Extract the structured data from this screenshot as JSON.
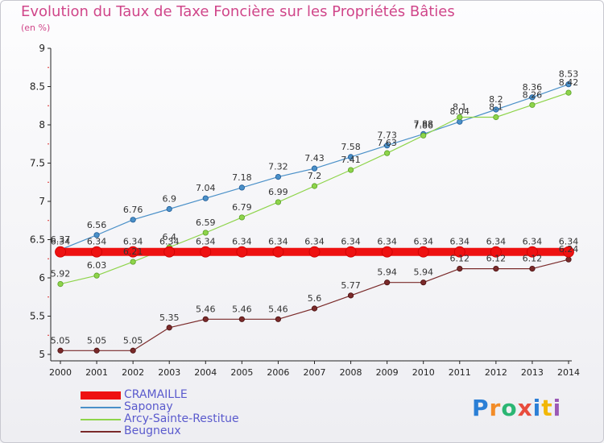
{
  "header": {
    "title": "Evolution du Taux de Taxe Foncière sur les Propriétés Bâties",
    "unit": "(en %)"
  },
  "brand": {
    "letters": [
      "P",
      "r",
      "o",
      "x",
      "i",
      "t",
      "i"
    ],
    "colors": [
      "#2b7fd6",
      "#f28c28",
      "#2bb673",
      "#e84c3d",
      "#2b7fd6",
      "#f2b705",
      "#9b59b6"
    ]
  },
  "chart_data": {
    "type": "line",
    "title": "Evolution du Taux de Taxe Foncière sur les Propriétés Bâties",
    "ylabel": "(en %)",
    "xlabel": "",
    "x": [
      "2000",
      "2001",
      "2002",
      "2003",
      "2004",
      "2005",
      "2006",
      "2007",
      "2008",
      "2009",
      "2010",
      "2011",
      "2012",
      "2013",
      "2014"
    ],
    "ylim": [
      5,
      9
    ],
    "yticks": [
      "5",
      "5.5",
      "6",
      "6.5",
      "7",
      "7.5",
      "8",
      "8.5",
      "9"
    ],
    "grid": false,
    "legend_position": "bottom-left",
    "series": [
      {
        "name": "CRAMAILLE",
        "color": "#ee1111",
        "values": [
          6.34,
          6.34,
          6.34,
          6.34,
          6.34,
          6.34,
          6.34,
          6.34,
          6.34,
          6.34,
          6.34,
          6.34,
          6.34,
          6.34,
          6.34
        ],
        "labels": [
          "6.34",
          "6.34",
          "6.34",
          "6.34",
          "6.34",
          "6.34",
          "6.34",
          "6.34",
          "6.34",
          "6.34",
          "6.34",
          "6.34",
          "6.34",
          "6.34",
          "6.34"
        ]
      },
      {
        "name": "Saponay",
        "color": "#4a90c8",
        "values": [
          6.37,
          6.56,
          6.76,
          6.9,
          7.04,
          7.18,
          7.32,
          7.43,
          7.58,
          7.73,
          7.88,
          8.04,
          8.2,
          8.36,
          8.53
        ],
        "labels": [
          "6.37",
          "6.56",
          "6.76",
          "6.9",
          "7.04",
          "7.18",
          "7.32",
          "7.43",
          "7.58",
          "7.73",
          "7.88",
          "8.04",
          "8.2",
          "8.36",
          "8.53"
        ]
      },
      {
        "name": "Arcy-Sainte-Restitue",
        "color": "#8ed44a",
        "values": [
          5.92,
          6.03,
          6.21,
          6.4,
          6.59,
          6.79,
          6.99,
          7.2,
          7.41,
          7.63,
          7.86,
          8.1,
          8.1,
          8.26,
          8.42
        ],
        "labels": [
          "5.92",
          "6.03",
          "6.21",
          "6.4",
          "6.59",
          "6.79",
          "6.99",
          "7.2",
          "7.41",
          "7.63",
          "7.86",
          "8.1",
          "8.1",
          "8.26",
          "8.42"
        ]
      },
      {
        "name": "Beugneux",
        "color": "#7a2a2a",
        "values": [
          5.05,
          5.05,
          5.05,
          5.35,
          5.46,
          5.46,
          5.46,
          5.6,
          5.77,
          5.94,
          5.94,
          6.12,
          6.12,
          6.12,
          6.24
        ],
        "labels": [
          "5.05",
          "5.05",
          "5.05",
          "5.35",
          "5.46",
          "5.46",
          "5.46",
          "5.6",
          "5.77",
          "5.94",
          "5.94",
          "6.12",
          "6.12",
          "6.12",
          "6.24"
        ]
      }
    ]
  }
}
